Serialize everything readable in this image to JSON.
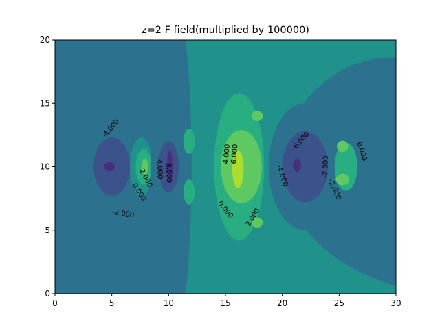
{
  "chart_data": {
    "type": "contour",
    "title": "z=2 F field(multiplied by 100000)",
    "xlabel": "",
    "ylabel": "",
    "xlim": [
      0,
      30
    ],
    "ylim": [
      0,
      20
    ],
    "xticks": [
      "0",
      "5",
      "10",
      "15",
      "20",
      "25",
      "30"
    ],
    "yticks": [
      "0",
      "5",
      "10",
      "15",
      "20"
    ],
    "grid": false,
    "colormap": "viridis",
    "levels": [
      -8,
      -6,
      -4,
      -2,
      0,
      2,
      4,
      6,
      8
    ],
    "level_colors": [
      "#440154",
      "#472f7d",
      "#3b528b",
      "#2c728e",
      "#21918c",
      "#28ae80",
      "#5ec962",
      "#addc30",
      "#fde725"
    ],
    "background_level_color": "#21918c",
    "regions": [
      {
        "level": -2,
        "shape": "ellipse",
        "cx": 5,
        "cy": 10,
        "rx": 3.2,
        "ry": 5.0
      },
      {
        "level": -4,
        "shape": "ellipse",
        "cx": 5,
        "cy": 10,
        "rx": 1.6,
        "ry": 2.3
      },
      {
        "level": -6,
        "shape": "ellipse",
        "cx": 4.8,
        "cy": 10,
        "rx": 0.5,
        "ry": 0.35
      },
      {
        "level": 0,
        "shape": "ellipse",
        "cx": 7.6,
        "cy": 10,
        "rx": 1.0,
        "ry": 2.3
      },
      {
        "level": 2,
        "shape": "ellipse",
        "cx": 7.8,
        "cy": 10,
        "rx": 0.7,
        "ry": 1.4
      },
      {
        "level": 4,
        "shape": "ellipse",
        "cx": 7.9,
        "cy": 10,
        "rx": 0.3,
        "ry": 0.6
      },
      {
        "level": -2,
        "shape": "ellipse",
        "cx": 10,
        "cy": 10,
        "rx": 1.6,
        "ry": 3.3
      },
      {
        "level": -4,
        "shape": "ellipse",
        "cx": 10,
        "cy": 10,
        "rx": 0.9,
        "ry": 2.0
      },
      {
        "level": -6,
        "shape": "ellipse",
        "cx": 10.1,
        "cy": 10,
        "rx": 0.25,
        "ry": 1.3
      },
      {
        "level": 2,
        "shape": "ellipse",
        "cx": 16.2,
        "cy": 10,
        "rx": 2.2,
        "ry": 5.8
      },
      {
        "level": 4,
        "shape": "ellipse",
        "cx": 16.4,
        "cy": 10,
        "rx": 1.8,
        "ry": 2.9
      },
      {
        "level": 6,
        "shape": "ellipse",
        "cx": 16.1,
        "cy": 9.8,
        "rx": 0.5,
        "ry": 1.5
      },
      {
        "level": -2,
        "shape": "ellipse",
        "cx": 22,
        "cy": 10,
        "rx": 3.2,
        "ry": 5.0
      },
      {
        "level": -4,
        "shape": "ellipse",
        "cx": 22,
        "cy": 10,
        "rx": 2.0,
        "ry": 2.8
      },
      {
        "level": -6,
        "shape": "ellipse",
        "cx": 21.3,
        "cy": 10.1,
        "rx": 0.35,
        "ry": 0.5
      },
      {
        "level": 2,
        "shape": "ellipse",
        "cx": 25.6,
        "cy": 10,
        "rx": 1.0,
        "ry": 1.9
      },
      {
        "level": 4,
        "shape": "ellipse",
        "cx": 25.3,
        "cy": 11.6,
        "rx": 0.5,
        "ry": 0.45
      },
      {
        "level": 4,
        "shape": "ellipse",
        "cx": 25.3,
        "cy": 9.0,
        "rx": 0.6,
        "ry": 0.45
      },
      {
        "level": 2,
        "shape": "ellipse",
        "cx": 11.8,
        "cy": 12.0,
        "rx": 0.5,
        "ry": 1.0
      },
      {
        "level": 2,
        "shape": "ellipse",
        "cx": 11.8,
        "cy": 8.0,
        "rx": 0.5,
        "ry": 1.0
      },
      {
        "level": 4,
        "shape": "ellipse",
        "cx": 17.8,
        "cy": 14.0,
        "rx": 0.5,
        "ry": 0.4
      },
      {
        "level": 4,
        "shape": "ellipse",
        "cx": 17.8,
        "cy": 5.6,
        "rx": 0.5,
        "ry": 0.4
      }
    ],
    "contour_labels": [
      {
        "text": "-4.000",
        "x": 4.9,
        "y": 13.0,
        "angle": -50
      },
      {
        "text": "-2.000",
        "x": 6.0,
        "y": 6.3,
        "angle": 8
      },
      {
        "text": "2.000",
        "x": 8.0,
        "y": 9.1,
        "angle": 62
      },
      {
        "text": "0.000",
        "x": 7.4,
        "y": 8.0,
        "angle": 58
      },
      {
        "text": "-4.000",
        "x": 9.2,
        "y": 9.9,
        "angle": 88
      },
      {
        "text": "-6.000",
        "x": 10.0,
        "y": 9.6,
        "angle": 88
      },
      {
        "text": "4.000",
        "x": 15.1,
        "y": 11.0,
        "angle": -85
      },
      {
        "text": "6.000",
        "x": 15.8,
        "y": 11.0,
        "angle": -85
      },
      {
        "text": "0.000",
        "x": 15.0,
        "y": 6.6,
        "angle": 50
      },
      {
        "text": "2.000",
        "x": 17.4,
        "y": 6.0,
        "angle": -58
      },
      {
        "text": "-6.000",
        "x": 21.6,
        "y": 12.0,
        "angle": -48
      },
      {
        "text": "-4.000",
        "x": 20.0,
        "y": 9.3,
        "angle": 72
      },
      {
        "text": "-2.000",
        "x": 23.8,
        "y": 10.0,
        "angle": -88
      },
      {
        "text": "-2.000",
        "x": 24.6,
        "y": 8.2,
        "angle": 66
      },
      {
        "text": "0.000",
        "x": 27.0,
        "y": 11.2,
        "angle": 72
      }
    ]
  }
}
